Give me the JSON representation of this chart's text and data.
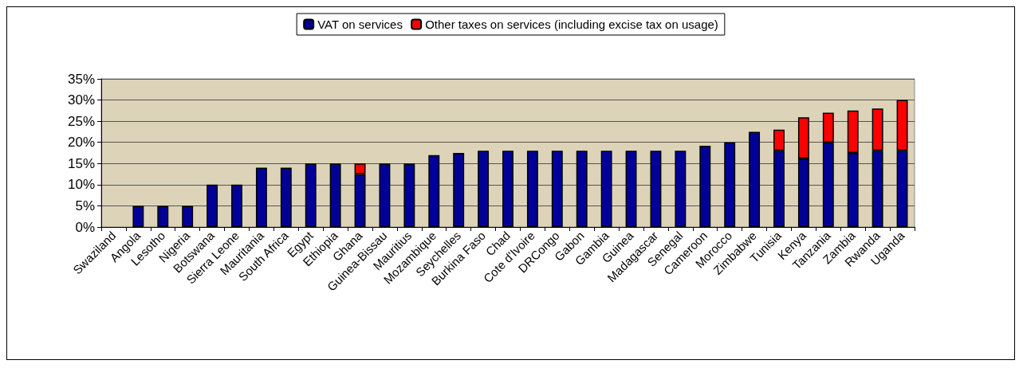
{
  "chart_data": {
    "type": "bar",
    "stacked": true,
    "categories": [
      "Swaziland",
      "Angola",
      "Lesotho",
      "Nigeria",
      "Botswana",
      "Sierra Leone",
      "Mauritania",
      "South Africa",
      "Egypt",
      "Ethiopia",
      "Ghana",
      "Guinea-Bissau",
      "Mauritius",
      "Mozambique",
      "Seychelles",
      "Burkina Faso",
      "Chad",
      "Cote d'Ivoire",
      "DRCongo",
      "Gabon",
      "Gambia",
      "Guinea",
      "Madagascar",
      "Senegal",
      "Cameroon",
      "Morocco",
      "Zimbabwe",
      "Tunisia",
      "Kenya",
      "Tanzania",
      "Zambia",
      "Rwanda",
      "Uganda"
    ],
    "series": [
      {
        "name": "VAT on services",
        "color": "#000099",
        "values": [
          0,
          5,
          5,
          5,
          10,
          10,
          14,
          14,
          15,
          15,
          12.5,
          15,
          15,
          17,
          17.5,
          18,
          18,
          18,
          18,
          18,
          18,
          18,
          18,
          18,
          19.2,
          20,
          22.5,
          18,
          16.2,
          20,
          17.5,
          18,
          18
        ]
      },
      {
        "name": "Other taxes on services (including excise tax on usage)",
        "color": "#ff0000",
        "values": [
          0,
          0,
          0,
          0,
          0,
          0,
          0,
          0,
          0,
          0,
          2.5,
          0,
          0,
          0,
          0,
          0,
          0,
          0,
          0,
          0,
          0,
          0,
          0,
          0,
          0,
          0,
          0,
          5,
          9.7,
          7,
          10,
          10,
          12
        ]
      }
    ],
    "ylim": [
      0,
      35
    ],
    "yticks": [
      {
        "value": 0,
        "label": "0%"
      },
      {
        "value": 5,
        "label": "5%"
      },
      {
        "value": 10,
        "label": "10%"
      },
      {
        "value": 15,
        "label": "15%"
      },
      {
        "value": 20,
        "label": "20%"
      },
      {
        "value": 25,
        "label": "25%"
      },
      {
        "value": 30,
        "label": "30%"
      },
      {
        "value": 35,
        "label": "35%"
      }
    ],
    "grid": "y",
    "legend": "top"
  }
}
